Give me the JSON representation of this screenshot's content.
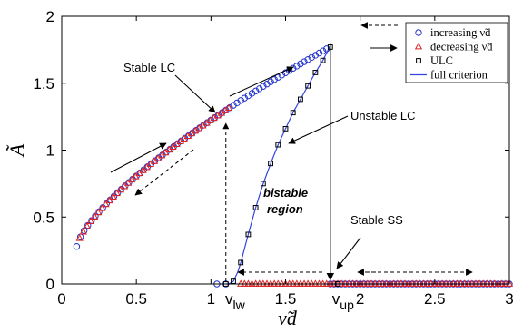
{
  "chart_data": {
    "type": "scatter",
    "xlabel": "ν̃d",
    "ylabel": "Ã",
    "xlim": [
      0,
      3
    ],
    "ylim": [
      0,
      2
    ],
    "xticks": [
      "0",
      "0.5",
      "1",
      "1.5",
      "2",
      "2.5",
      "3"
    ],
    "yticks": [
      "0",
      "0.5",
      "1",
      "1.5",
      "2"
    ],
    "grid": false,
    "legend_position": "top-right",
    "legend": [
      {
        "label": "increasing ν̃d",
        "marker": "circle",
        "color": "#2233cc"
      },
      {
        "label": "decreasing ν̃d",
        "marker": "triangle",
        "color": "#dd2222"
      },
      {
        "label": "ULC",
        "marker": "square",
        "color": "#000000"
      },
      {
        "label": "full criterion",
        "marker": "line",
        "color": "#3344dd"
      }
    ],
    "series": [
      {
        "name": "increasing ν̃d",
        "marker": "circle",
        "color": "#2233cc",
        "curve": {
          "x_start": 0.1,
          "x_end": 1.78,
          "step": 0.025,
          "a": 0.42,
          "b": 1.59,
          "p": 0.74
        },
        "lower_branch": {
          "x_start": 1.8,
          "x_end": 3.0,
          "step": 0.025,
          "y": 0
        }
      },
      {
        "name": "decreasing ν̃d",
        "marker": "triangle",
        "color": "#dd2222",
        "curve": {
          "x_start": 0.12,
          "x_end": 1.12,
          "step": 0.025,
          "a": 0.42,
          "b": 1.59,
          "p": 0.74
        },
        "lower_branch": {
          "x_start": 1.2,
          "x_end": 3.0,
          "step": 0.025,
          "y": 0
        }
      },
      {
        "name": "ULC",
        "marker": "square",
        "color": "#000000",
        "x": [
          1.1,
          1.15,
          1.2,
          1.25,
          1.3,
          1.35,
          1.4,
          1.45,
          1.5,
          1.55,
          1.6,
          1.65,
          1.7,
          1.75,
          1.8,
          1.85
        ],
        "y": [
          0.0,
          0.02,
          0.16,
          0.37,
          0.57,
          0.75,
          0.9,
          1.04,
          1.16,
          1.28,
          1.38,
          1.48,
          1.58,
          1.67,
          1.77,
          0.0
        ]
      },
      {
        "name": "full criterion",
        "type": "line",
        "color": "#3344dd",
        "x": [
          1.1,
          1.12,
          1.15,
          1.18,
          1.2,
          1.25,
          1.3,
          1.35,
          1.4,
          1.45,
          1.5,
          1.55,
          1.6,
          1.65,
          1.7,
          1.75,
          1.8
        ],
        "y": [
          0.0,
          0.0,
          0.02,
          0.09,
          0.16,
          0.37,
          0.57,
          0.75,
          0.9,
          1.04,
          1.16,
          1.28,
          1.38,
          1.48,
          1.58,
          1.67,
          1.78
        ]
      }
    ],
    "annotations": [
      {
        "text": "Stable LC"
      },
      {
        "text": "Unstable LC"
      },
      {
        "text": "bistable"
      },
      {
        "text": "region"
      },
      {
        "text": "Stable SS"
      },
      {
        "text": "v",
        "sub": "lw",
        "x": 1.12
      },
      {
        "text": "v",
        "sub": "up",
        "x": 1.8
      }
    ]
  }
}
